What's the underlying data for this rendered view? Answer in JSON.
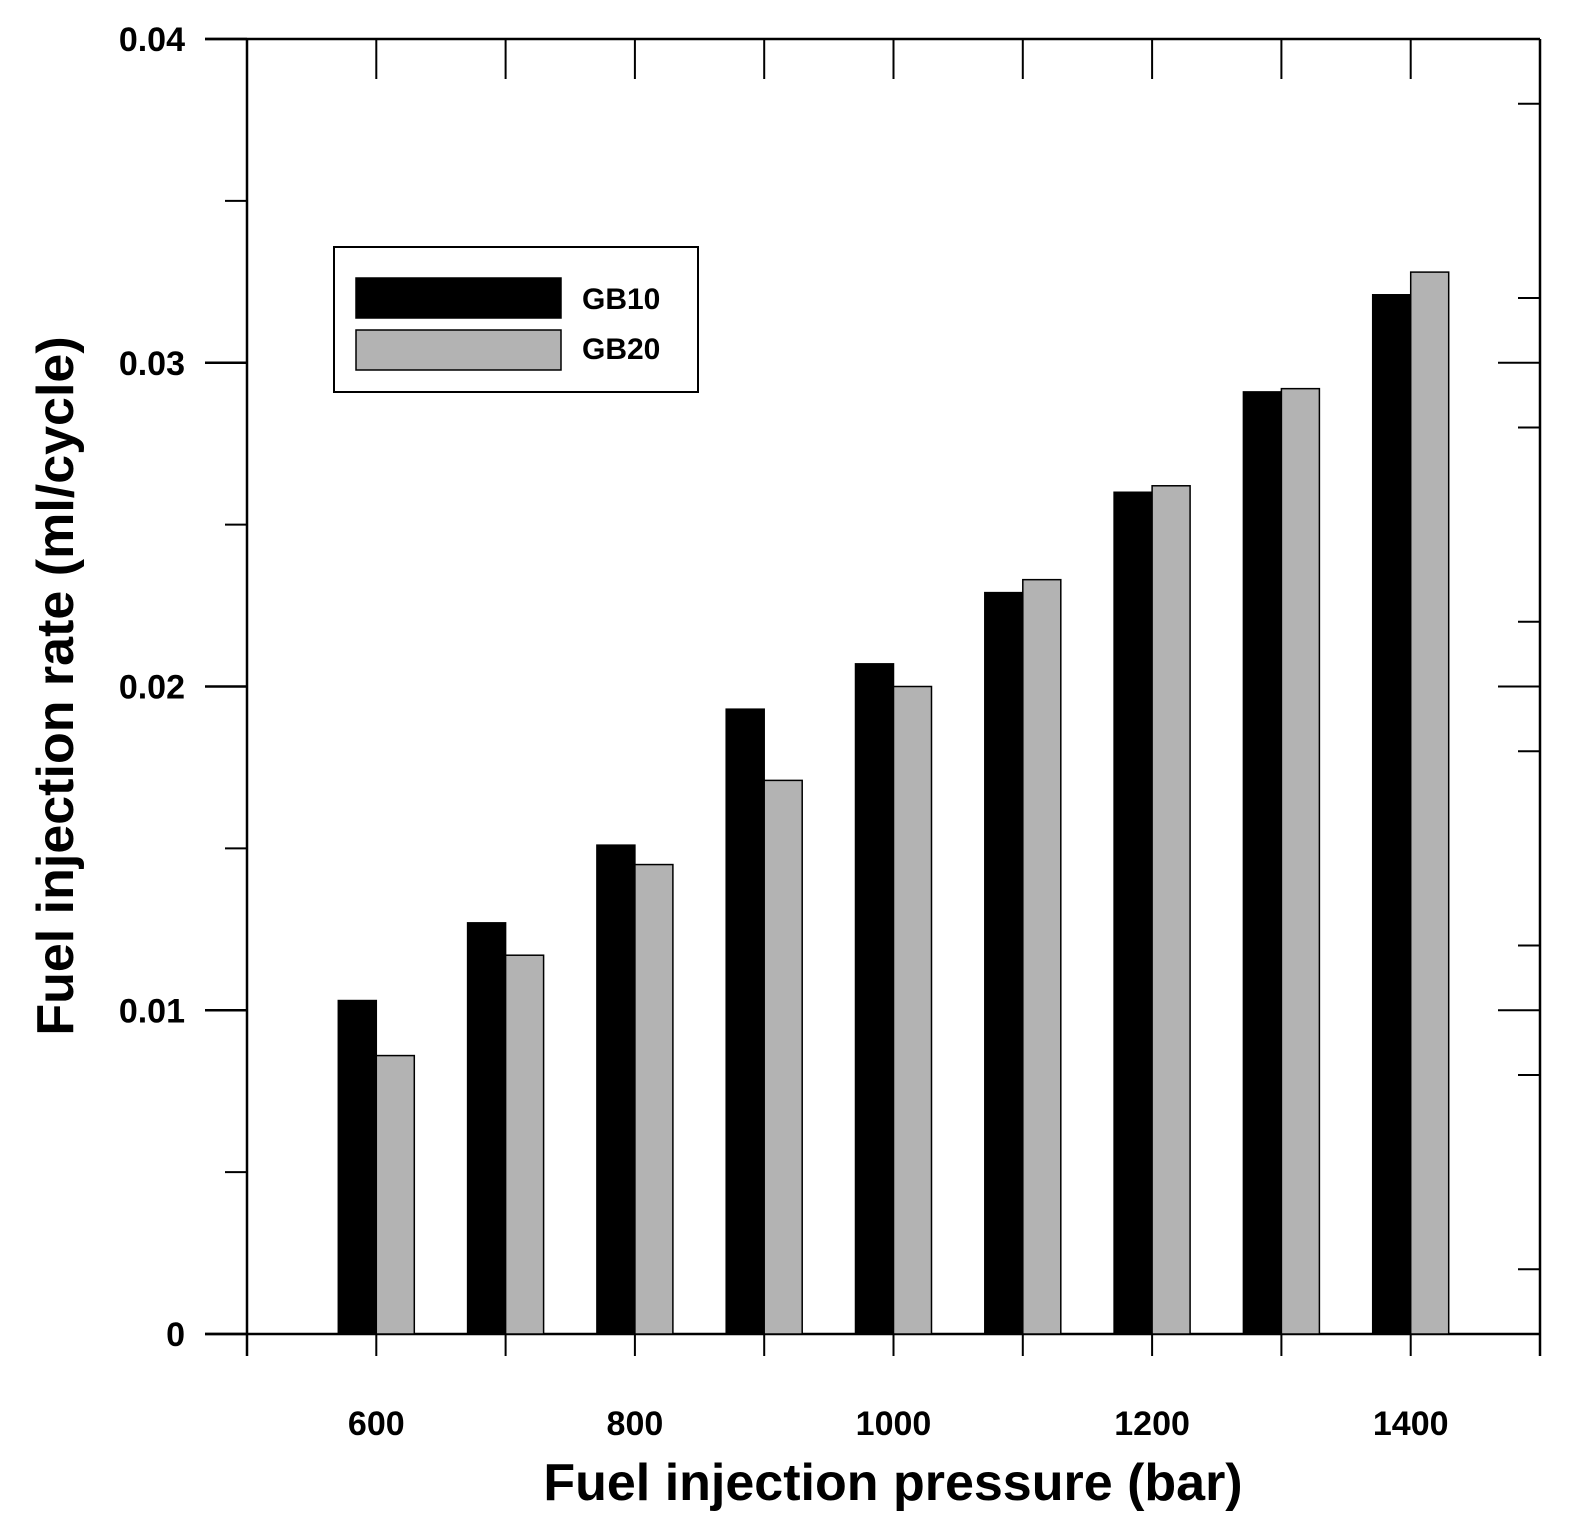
{
  "chart_data": {
    "type": "bar",
    "title": "",
    "xlabel": "Fuel injection pressure (bar)",
    "ylabel": "Fuel injection rate (ml/cycle)",
    "x": [
      600,
      700,
      800,
      900,
      1000,
      1100,
      1200,
      1300,
      1400
    ],
    "xlim": [
      500,
      1500
    ],
    "ylim": [
      0,
      0.04
    ],
    "x_ticks": [
      600,
      800,
      1000,
      1200,
      1400
    ],
    "x_tick_labels": [
      "600",
      "800",
      "1000",
      "1200",
      "1400"
    ],
    "y_ticks": [
      0,
      0.01,
      0.02,
      0.03,
      0.04
    ],
    "y_tick_labels": [
      "0",
      "0.01",
      "0.02",
      "0.03",
      "0.04"
    ],
    "series": [
      {
        "name": "GB10",
        "color": "#000000",
        "values": [
          0.0103,
          0.0127,
          0.0151,
          0.0193,
          0.0207,
          0.0229,
          0.026,
          0.0291,
          0.0321
        ]
      },
      {
        "name": "GB20",
        "color": "#b3b3b3",
        "values": [
          0.0086,
          0.0117,
          0.0145,
          0.0171,
          0.02,
          0.0233,
          0.0262,
          0.0292,
          0.0328
        ]
      }
    ],
    "legend": {
      "position": "top-left"
    },
    "grid": false
  }
}
